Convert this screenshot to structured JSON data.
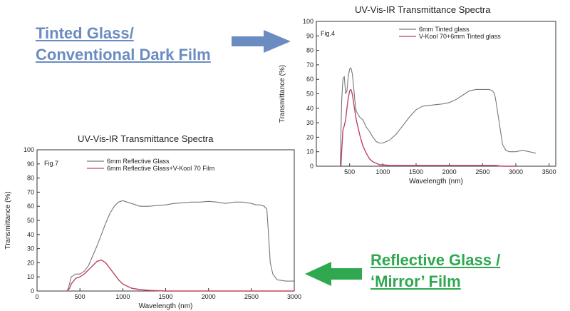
{
  "labels": {
    "tinted": [
      "Tinted Glass/",
      "Conventional Dark Film"
    ],
    "reflective": [
      "Reflective Glass / ",
      "‘Mirror’ Film"
    ]
  },
  "colors": {
    "tinted_label": "#6b8cc0",
    "reflective_label": "#2fa84f",
    "blue_arrow": "#6b8cc0",
    "green_arrow": "#2fa84f",
    "series_gray": "#777777",
    "series_red": "#c0435e"
  },
  "chart_data": [
    {
      "id": "fig4",
      "type": "line",
      "title": "UV-Vis-IR Transmittance Spectra",
      "fig_label": "Fig.4",
      "xlabel": "Wavelength (nm)",
      "ylabel": "Transmittance (%)",
      "xlim": [
        0,
        3600
      ],
      "ylim": [
        0,
        100
      ],
      "xticks": [
        500,
        1000,
        1500,
        2000,
        2500,
        3000,
        3500
      ],
      "yticks": [
        0,
        10,
        20,
        30,
        40,
        50,
        60,
        70,
        80,
        90,
        100
      ],
      "grid": false,
      "legend_position": "top-right",
      "series": [
        {
          "name": "6mm Tinted glass",
          "color": "gray",
          "x": [
            360,
            370,
            380,
            400,
            420,
            440,
            460,
            480,
            500,
            520,
            540,
            560,
            580,
            600,
            650,
            700,
            750,
            800,
            850,
            900,
            950,
            1000,
            1100,
            1200,
            1300,
            1400,
            1500,
            1600,
            1700,
            1800,
            1900,
            2000,
            2100,
            2200,
            2300,
            2400,
            2500,
            2600,
            2650,
            2680,
            2700,
            2750,
            2800,
            2850,
            2900,
            3000,
            3100,
            3200,
            3300
          ],
          "y": [
            0,
            22,
            45,
            60,
            62,
            50,
            52,
            62,
            67,
            68,
            64,
            55,
            45,
            38,
            34,
            32,
            27,
            24,
            20,
            17,
            16,
            16,
            18,
            22,
            28,
            34,
            39,
            41.5,
            42,
            42.5,
            43,
            44,
            46,
            49,
            52,
            53,
            53,
            53,
            52,
            50,
            45,
            30,
            15,
            11,
            10,
            10,
            11,
            10,
            9
          ]
        },
        {
          "name": "V-Kool 70+6mm Tinted glass",
          "color": "red",
          "x": [
            370,
            380,
            400,
            420,
            440,
            460,
            480,
            500,
            520,
            540,
            560,
            580,
            600,
            620,
            650,
            700,
            750,
            800,
            850,
            900,
            950,
            1000,
            1100,
            1200,
            1500,
            2000,
            2500,
            2700,
            2800,
            3000
          ],
          "y": [
            0,
            10,
            25,
            28,
            32,
            40,
            47,
            52,
            53,
            50,
            44,
            38,
            32,
            28,
            22,
            14,
            9,
            5,
            3,
            2,
            1,
            1,
            0.5,
            0.5,
            0.5,
            0.5,
            0.5,
            0.5,
            0,
            0
          ]
        }
      ]
    },
    {
      "id": "fig7",
      "type": "line",
      "title": "UV-Vis-IR Transmittance Spectra",
      "fig_label": "Fig.7",
      "xlabel": "Wavelength (nm)",
      "ylabel": "Transmittance (%)",
      "xlim": [
        0,
        3000
      ],
      "ylim": [
        0,
        100
      ],
      "xticks": [
        0,
        500,
        1000,
        1500,
        2000,
        2500,
        3000
      ],
      "yticks": [
        0,
        10,
        20,
        30,
        40,
        50,
        60,
        70,
        80,
        90,
        100
      ],
      "grid": false,
      "legend_position": "top-left",
      "series": [
        {
          "name": "6mm Reflective Glass",
          "color": "gray",
          "x": [
            350,
            370,
            400,
            450,
            500,
            550,
            600,
            650,
            700,
            750,
            800,
            850,
            900,
            950,
            1000,
            1050,
            1100,
            1200,
            1300,
            1400,
            1500,
            1600,
            1700,
            1800,
            1900,
            2000,
            2100,
            2200,
            2300,
            2400,
            2500,
            2550,
            2600,
            2650,
            2680,
            2700,
            2720,
            2750,
            2800,
            2900,
            3000
          ],
          "y": [
            0,
            3,
            10,
            12,
            12,
            14,
            18,
            25,
            32,
            40,
            48,
            55,
            60,
            63,
            64,
            63,
            62,
            60,
            60,
            60.5,
            61,
            62,
            62.5,
            63,
            63,
            63.5,
            63,
            62,
            63,
            63,
            62,
            61,
            61,
            60,
            58,
            40,
            20,
            12,
            8,
            7,
            7
          ]
        },
        {
          "name": "6mm Reflective Glass+V-Kool 70 Film",
          "color": "red",
          "x": [
            350,
            380,
            400,
            450,
            500,
            550,
            600,
            650,
            700,
            750,
            800,
            850,
            900,
            950,
            1000,
            1100,
            1200,
            1300,
            1500,
            2000,
            2500,
            3000
          ],
          "y": [
            0,
            2,
            5,
            9,
            10,
            12,
            15,
            18,
            21,
            22,
            20,
            16,
            12,
            8,
            5,
            2,
            1,
            0.5,
            0,
            0,
            0,
            0
          ]
        }
      ]
    }
  ]
}
